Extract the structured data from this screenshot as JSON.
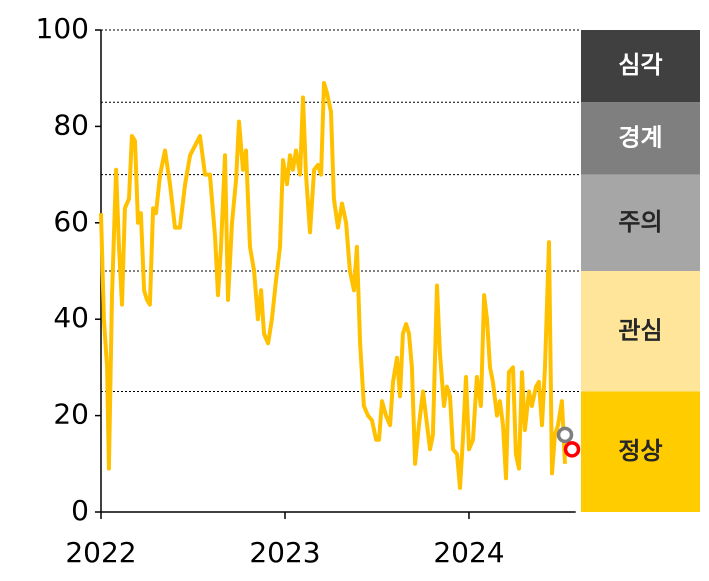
{
  "chart_data": {
    "type": "line",
    "x": [
      2022.0,
      2022.016,
      2022.033,
      2022.043,
      2022.06,
      2022.082,
      2022.098,
      2022.114,
      2022.13,
      2022.152,
      2022.168,
      2022.185,
      2022.201,
      2022.217,
      2022.234,
      2022.25,
      2022.266,
      2022.283,
      2022.299,
      2022.321,
      2022.348,
      2022.375,
      2022.402,
      2022.429,
      2022.457,
      2022.484,
      2022.511,
      2022.538,
      2022.565,
      2022.592,
      2022.62,
      2022.636,
      2022.652,
      2022.674,
      2022.69,
      2022.712,
      2022.734,
      2022.75,
      2022.772,
      2022.788,
      2022.81,
      2022.832,
      2022.853,
      2022.87,
      2022.886,
      2022.908,
      2022.929,
      2022.951,
      2022.973,
      2022.989,
      2023.011,
      2023.027,
      2023.043,
      2023.06,
      2023.082,
      2023.098,
      2023.114,
      2023.136,
      2023.158,
      2023.179,
      2023.196,
      2023.212,
      2023.228,
      2023.25,
      2023.266,
      2023.288,
      2023.31,
      2023.332,
      2023.353,
      2023.375,
      2023.391,
      2023.408,
      2023.429,
      2023.451,
      2023.473,
      2023.495,
      2023.511,
      2023.527,
      2023.549,
      2023.571,
      2023.587,
      2023.609,
      2023.625,
      2023.641,
      2023.658,
      2023.674,
      2023.69,
      2023.707,
      2023.728,
      2023.75,
      2023.766,
      2023.788,
      2023.804,
      2023.826,
      2023.842,
      2023.864,
      2023.88,
      2023.897,
      2023.913,
      2023.935,
      2023.951,
      2023.967,
      2023.984,
      2024.0,
      2024.022,
      2024.043,
      2024.065,
      2024.082,
      2024.098,
      2024.114,
      2024.13,
      2024.152,
      2024.168,
      2024.185,
      2024.201,
      2024.217,
      2024.239,
      2024.255,
      2024.272,
      2024.288,
      2024.304,
      2024.326,
      2024.342,
      2024.364,
      2024.38,
      2024.397,
      2024.413,
      2024.435,
      2024.451,
      2024.467,
      2024.484,
      2024.505,
      2024.522
    ],
    "series": [
      {
        "color": "#ffc000",
        "values": [
          62,
          40,
          30,
          9,
          45,
          71,
          55,
          43,
          63,
          65,
          78,
          77,
          60,
          62,
          46,
          44,
          43,
          63,
          62,
          70,
          75,
          68,
          59,
          59,
          68,
          74,
          76,
          78,
          70,
          70,
          57,
          45,
          55,
          74,
          44,
          60,
          69,
          81,
          71,
          75,
          55,
          50,
          40,
          46,
          37,
          35,
          40,
          48,
          55,
          73,
          68,
          74,
          71,
          75,
          70,
          86,
          70,
          58,
          71,
          72,
          70,
          89,
          87,
          83,
          65,
          59,
          64,
          60,
          50,
          46,
          55,
          35,
          22,
          20,
          19,
          15,
          15,
          23,
          20,
          18,
          27,
          32,
          24,
          37,
          39,
          37,
          30,
          10,
          18,
          25,
          20,
          13,
          16,
          47,
          33,
          22,
          26,
          24,
          13,
          12,
          5,
          15,
          28,
          13,
          15,
          28,
          22,
          45,
          40,
          30,
          27,
          20,
          23,
          18,
          7,
          29,
          30,
          12,
          9,
          29,
          17,
          25,
          22,
          26,
          27,
          18,
          30,
          56,
          8,
          16,
          18,
          23,
          10
        ]
      }
    ],
    "points": [
      {
        "x": 2024.522,
        "y": 16,
        "color": "#7f7f7f"
      },
      {
        "x": 2024.56,
        "y": 13,
        "color": "#ff0000"
      }
    ],
    "bands": [
      {
        "label": "심각",
        "from": 85,
        "to": 100,
        "color": "#404040",
        "text_color": "#ffffff"
      },
      {
        "label": "경계",
        "from": 70,
        "to": 85,
        "color": "#7f7f7f",
        "text_color": "#ffffff"
      },
      {
        "label": "주의",
        "from": 50,
        "to": 70,
        "color": "#a6a6a6",
        "text_color": "#262626"
      },
      {
        "label": "관심",
        "from": 25,
        "to": 50,
        "color": "#fee599",
        "text_color": "#262626"
      },
      {
        "label": "정상",
        "from": 0,
        "to": 25,
        "color": "#ffcc00",
        "text_color": "#262626"
      }
    ],
    "xlim": [
      2022,
      2024.58
    ],
    "xticks": [
      2022,
      2023,
      2024
    ],
    "ylim": [
      0,
      100
    ],
    "yticks": [
      0,
      20,
      40,
      60,
      80,
      100
    ]
  }
}
